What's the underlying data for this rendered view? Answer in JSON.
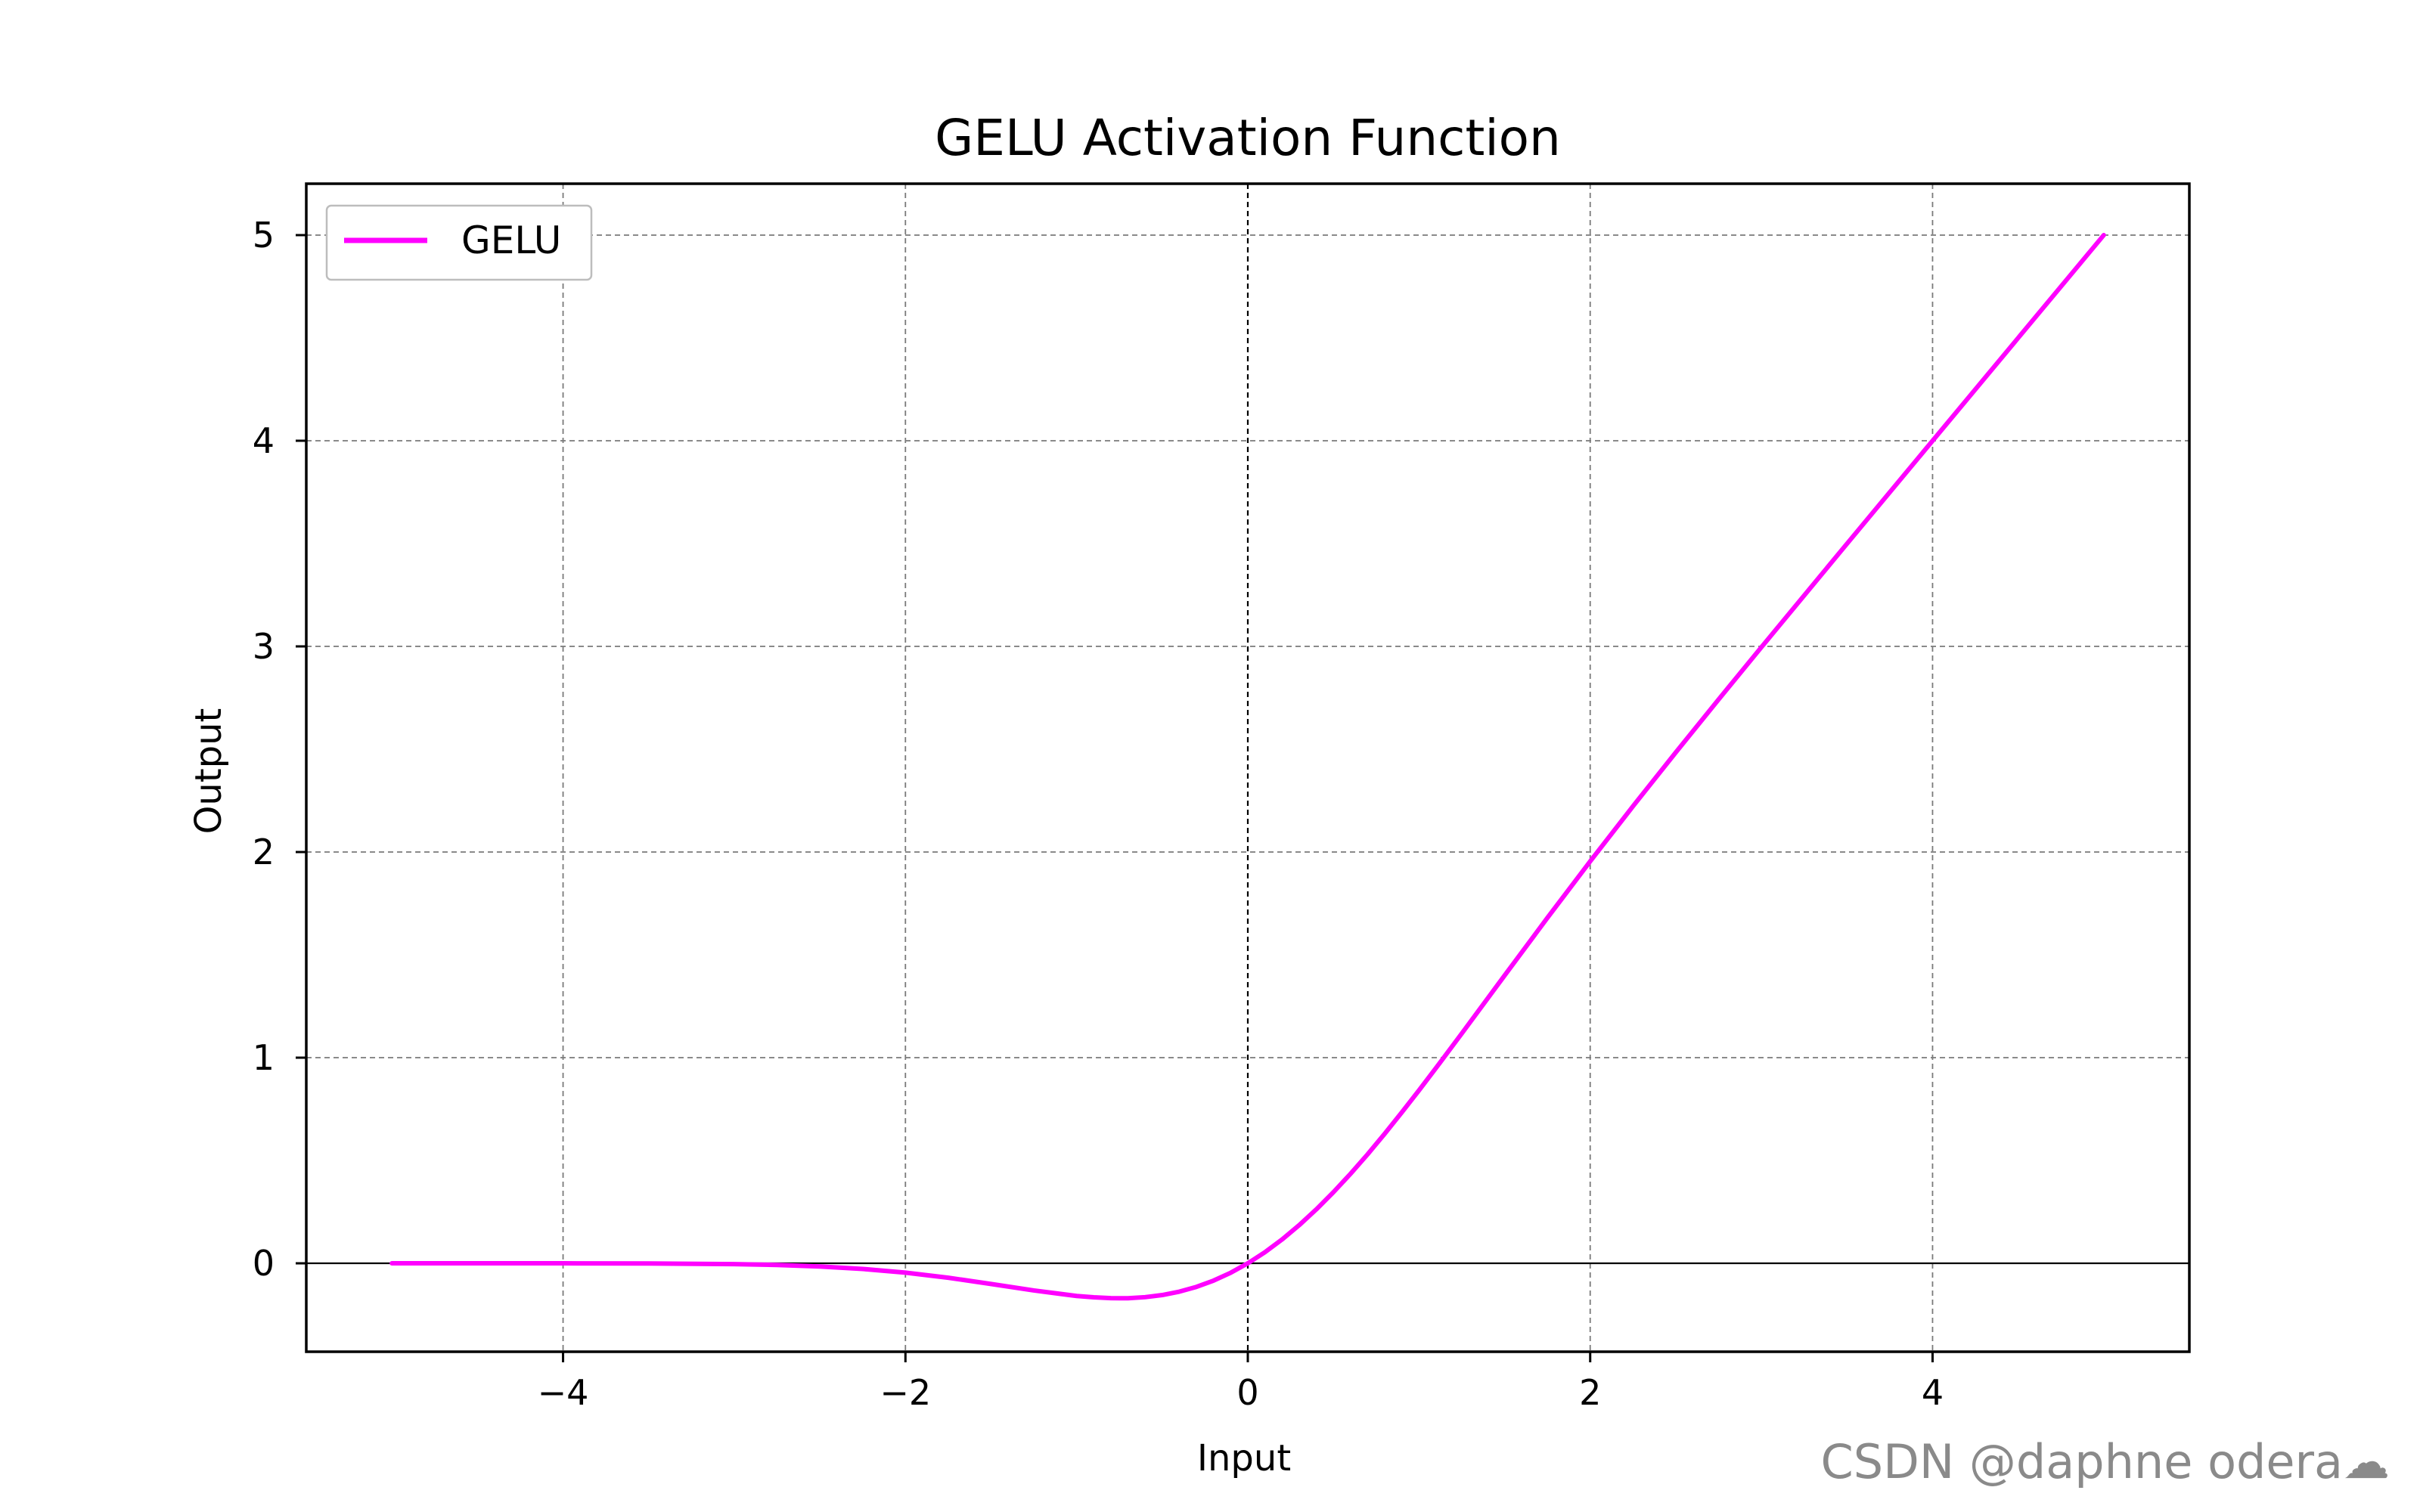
{
  "chart_data": {
    "type": "line",
    "title": "GELU Activation Function",
    "xlabel": "Input",
    "ylabel": "Output",
    "xlim": [
      -5.5,
      5.5
    ],
    "ylim": [
      -0.43,
      5.25
    ],
    "x_ticks": [
      -4,
      -2,
      0,
      2,
      4
    ],
    "y_ticks": [
      0,
      1,
      2,
      3,
      4,
      5
    ],
    "x_tick_labels": [
      "−4",
      "−2",
      "0",
      "2",
      "4"
    ],
    "y_tick_labels": [
      "0",
      "1",
      "2",
      "3",
      "4",
      "5"
    ],
    "grid": true,
    "zero_lines": true,
    "legend_position": "top-left",
    "series": [
      {
        "name": "GELU",
        "color": "#ff00ff",
        "x": [
          -5.0,
          -4.5,
          -4.0,
          -3.5,
          -3.0,
          -2.75,
          -2.5,
          -2.25,
          -2.0,
          -1.75,
          -1.5,
          -1.25,
          -1.0,
          -0.9,
          -0.8,
          -0.75,
          -0.7,
          -0.6,
          -0.5,
          -0.4,
          -0.3,
          -0.2,
          -0.1,
          0.0,
          0.1,
          0.2,
          0.3,
          0.4,
          0.5,
          0.6,
          0.7,
          0.8,
          0.9,
          1.0,
          1.1,
          1.25,
          1.5,
          1.75,
          2.0,
          2.25,
          2.5,
          2.75,
          3.0,
          3.5,
          4.0,
          4.5,
          5.0
        ],
        "y": [
          0.0,
          0.0,
          -0.0001,
          -0.0008,
          -0.004,
          -0.0082,
          -0.0155,
          -0.0274,
          -0.0454,
          -0.0701,
          -0.1004,
          -0.132,
          -0.1588,
          -0.1655,
          -0.1695,
          -0.1701,
          -0.1697,
          -0.1646,
          -0.1543,
          -0.1378,
          -0.1146,
          -0.0841,
          -0.046,
          0.0,
          0.054,
          0.1159,
          0.1854,
          0.2622,
          0.3457,
          0.4354,
          0.5303,
          0.6305,
          0.7345,
          0.8412,
          0.9505,
          1.1178,
          1.3996,
          1.6799,
          1.9546,
          2.2226,
          2.4845,
          2.7418,
          2.996,
          3.4992,
          3.9999,
          4.5,
          5.0
        ]
      }
    ]
  },
  "watermark": "CSDN @daphne odera☁"
}
